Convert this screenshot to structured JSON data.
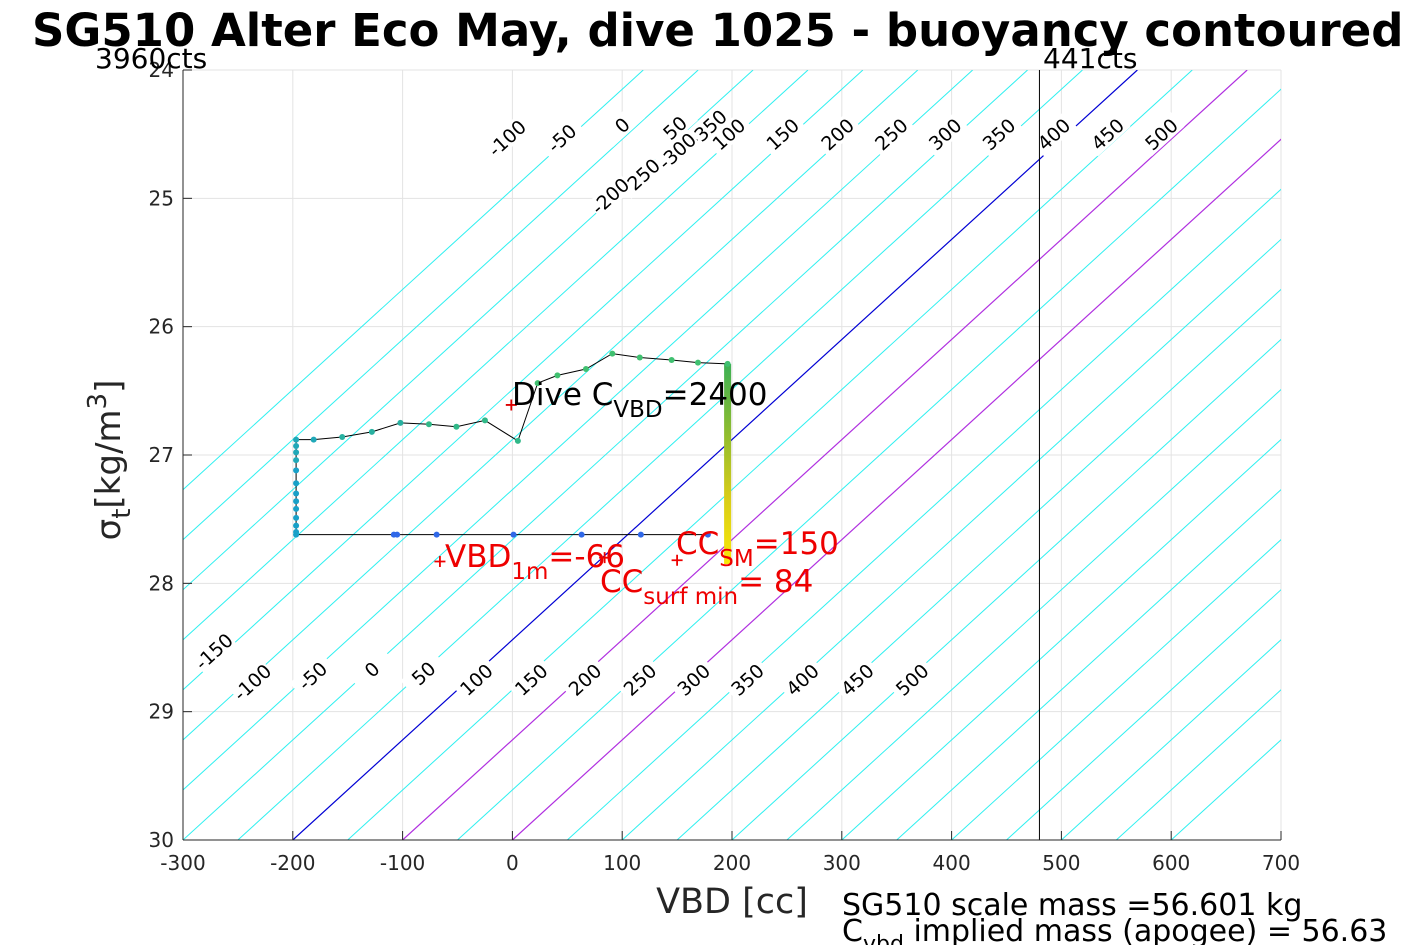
{
  "chart_data": {
    "type": "line",
    "title": "SG510 Alter Eco May, dive 1025 - buoyancy contoured",
    "xlabel": "VBD [cc]",
    "ylabel": "σ_t [kg/m^3]",
    "ylabel_parts": {
      "sigma": "σ",
      "sub": "t",
      "unit_pre": "[kg/m",
      "sup": "3",
      "unit_post": "]"
    },
    "xlim": [
      -300,
      700
    ],
    "ylim": [
      24,
      30
    ],
    "y_reversed": true,
    "grid": true,
    "xticks": [
      -300,
      -200,
      -100,
      0,
      100,
      200,
      300,
      400,
      500,
      600,
      700
    ],
    "yticks": [
      24,
      25,
      26,
      27,
      28,
      29,
      30
    ],
    "xtick_labels": [
      "-300",
      "-200",
      "-100",
      "0",
      "100",
      "200",
      "300",
      "400",
      "500",
      "600",
      "700"
    ],
    "ytick_labels": [
      "24",
      "25",
      "26",
      "27",
      "28",
      "29",
      "30"
    ],
    "vbd_counts": {
      "left": "3960cts",
      "right": "441cts",
      "right_vbd_line": 480
    },
    "buoyancy_contours": {
      "levels": [
        -350,
        -300,
        -250,
        -200,
        -150,
        -100,
        -50,
        0,
        50,
        100,
        150,
        200,
        250,
        300,
        350,
        400,
        450,
        500
      ],
      "slope_cc_per_kgm3": -128.2,
      "reference_sigma": 30,
      "vbd_at_reference_for_zero": -200,
      "zero_level_color": "#0000d4",
      "highlight_levels": [
        100,
        200
      ],
      "highlight_color": "#b030e0",
      "contour_color": "#2ef0f0",
      "top_labels": [
        {
          "level": -350,
          "label": "-350",
          "x": 178,
          "y": 24.45
        },
        {
          "level": -300,
          "label": "-300",
          "x": 150,
          "y": 24.63
        },
        {
          "level": -250,
          "label": "-250",
          "x": 117,
          "y": 24.83
        },
        {
          "level": -200,
          "label": "-200",
          "x": 89,
          "y": 24.98
        },
        {
          "level": -100,
          "label": "-100",
          "x": -5,
          "y": 24.53
        },
        {
          "level": -50,
          "label": "-50",
          "x": 45,
          "y": 24.53
        },
        {
          "level": 0,
          "label": "0",
          "x": 100,
          "y": 24.43
        },
        {
          "level": 50,
          "label": "50",
          "x": 148,
          "y": 24.45
        },
        {
          "level": 100,
          "label": "100",
          "x": 197,
          "y": 24.5
        },
        {
          "level": 150,
          "label": "150",
          "x": 246,
          "y": 24.5
        },
        {
          "level": 200,
          "label": "200",
          "x": 296,
          "y": 24.5
        },
        {
          "level": 250,
          "label": "250",
          "x": 345,
          "y": 24.5
        },
        {
          "level": 300,
          "label": "300",
          "x": 394,
          "y": 24.5
        },
        {
          "level": 350,
          "label": "350",
          "x": 443,
          "y": 24.5
        },
        {
          "level": 400,
          "label": "400",
          "x": 493,
          "y": 24.5
        },
        {
          "level": 450,
          "label": "450",
          "x": 542,
          "y": 24.5
        },
        {
          "level": 500,
          "label": "500",
          "x": 591,
          "y": 24.5
        }
      ],
      "bottom_labels": [
        {
          "level": -150,
          "label": "-150",
          "x": -272,
          "y": 28.53
        },
        {
          "level": -100,
          "label": "-100",
          "x": -237,
          "y": 28.77
        },
        {
          "level": -50,
          "label": "-50",
          "x": -182,
          "y": 28.72
        },
        {
          "level": 0,
          "label": "0",
          "x": -128,
          "y": 28.67
        },
        {
          "level": 50,
          "label": "50",
          "x": -81,
          "y": 28.7
        },
        {
          "level": 100,
          "label": "100",
          "x": -33,
          "y": 28.75
        },
        {
          "level": 150,
          "label": "150",
          "x": 17,
          "y": 28.75
        },
        {
          "level": 200,
          "label": "200",
          "x": 66,
          "y": 28.75
        },
        {
          "level": 250,
          "label": "250",
          "x": 116,
          "y": 28.75
        },
        {
          "level": 300,
          "label": "300",
          "x": 165,
          "y": 28.75
        },
        {
          "level": 350,
          "label": "350",
          "x": 214,
          "y": 28.75
        },
        {
          "level": 400,
          "label": "400",
          "x": 264,
          "y": 28.75
        },
        {
          "level": 450,
          "label": "450",
          "x": 314,
          "y": 28.75
        },
        {
          "level": 500,
          "label": "500",
          "x": 364,
          "y": 28.75
        }
      ]
    },
    "series": [
      {
        "kind": "dive_track",
        "line_color": "#000000",
        "points": [
          {
            "x": 196,
            "y": 26.29,
            "c": "#40c070"
          },
          {
            "x": 169,
            "y": 26.28,
            "c": "#40c070"
          },
          {
            "x": 145,
            "y": 26.26,
            "c": "#40c070"
          },
          {
            "x": 116,
            "y": 26.24,
            "c": "#40c070"
          },
          {
            "x": 91,
            "y": 26.21,
            "c": "#40c070"
          },
          {
            "x": 67,
            "y": 26.33,
            "c": "#40c070"
          },
          {
            "x": 41,
            "y": 26.38,
            "c": "#40c070"
          },
          {
            "x": 23,
            "y": 26.44,
            "c": "#40c070"
          },
          {
            "x": 5,
            "y": 26.89,
            "c": "#30b888"
          },
          {
            "x": -25,
            "y": 26.73,
            "c": "#30b888"
          },
          {
            "x": -51,
            "y": 26.78,
            "c": "#30b888"
          },
          {
            "x": -76,
            "y": 26.76,
            "c": "#30b888"
          },
          {
            "x": -102,
            "y": 26.75,
            "c": "#28b0a0"
          },
          {
            "x": -128,
            "y": 26.82,
            "c": "#28b0a0"
          },
          {
            "x": -155,
            "y": 26.86,
            "c": "#28b0a0"
          },
          {
            "x": -181,
            "y": 26.88,
            "c": "#20a8b8"
          },
          {
            "x": -197,
            "y": 26.88,
            "c": "#20a8b8"
          },
          {
            "x": -197,
            "y": 26.93,
            "c": "#20a8b8"
          },
          {
            "x": -197,
            "y": 26.98,
            "c": "#20a8b8"
          },
          {
            "x": -197,
            "y": 27.04,
            "c": "#20a8b8"
          },
          {
            "x": -197,
            "y": 27.12,
            "c": "#18a0c8"
          },
          {
            "x": -197,
            "y": 27.22,
            "c": "#18a0c8"
          },
          {
            "x": -197,
            "y": 27.3,
            "c": "#18a0c8"
          },
          {
            "x": -197,
            "y": 27.36,
            "c": "#18a0c8"
          },
          {
            "x": -197,
            "y": 27.42,
            "c": "#18a0c8"
          },
          {
            "x": -197,
            "y": 27.49,
            "c": "#18a0c8"
          },
          {
            "x": -197,
            "y": 27.55,
            "c": "#18a0c8"
          },
          {
            "x": -197,
            "y": 27.6,
            "c": "#18a0c8"
          },
          {
            "x": -197,
            "y": 27.62,
            "c": "#18a0c8"
          },
          {
            "x": -108,
            "y": 27.62,
            "c": "#3068e8"
          },
          {
            "x": -105,
            "y": 27.62,
            "c": "#3068e8"
          },
          {
            "x": -69,
            "y": 27.62,
            "c": "#3068e8"
          },
          {
            "x": 1,
            "y": 27.62,
            "c": "#3068e8"
          },
          {
            "x": 63,
            "y": 27.62,
            "c": "#3068e8"
          },
          {
            "x": 117,
            "y": 27.62,
            "c": "#3068e8"
          },
          {
            "x": 178,
            "y": 27.62,
            "c": "#3068e8"
          }
        ]
      },
      {
        "kind": "vertical_gradient_bar",
        "x": 196,
        "y_top": 26.29,
        "y_bottom": 27.85,
        "colors": [
          "#3cb054",
          "#8cbc30",
          "#d8cc18",
          "#f8e808"
        ]
      }
    ],
    "markers": [
      {
        "label": "Dive C_VBD=2400",
        "x": -1,
        "y": 26.61,
        "color": "#dd0000"
      },
      {
        "label": "VBD_1m = -66",
        "x": -66,
        "y": 27.83,
        "color": "#ee0000"
      },
      {
        "label": "CC_surf min = 84",
        "x": 84,
        "y": 27.8,
        "color": "#ee0000"
      },
      {
        "label": "CC_SM = 150",
        "x": 150,
        "y": 27.82,
        "color": "#ee0000"
      }
    ],
    "annotations": {
      "dive_cvbd": {
        "pre": "Dive C",
        "sub": "VBD",
        "post": "=2400"
      },
      "vbd_1m": {
        "pre": "VBD",
        "sub": "1m",
        "post": "=-66"
      },
      "cc_sm": {
        "pre": "CC",
        "sub": "SM",
        "post": "=150"
      },
      "cc_surf": {
        "pre": "CC",
        "sub": "surf min",
        "post": "= 84"
      },
      "scale_mass": "SG510 scale mass =56.601 kg",
      "implied_mass": {
        "pre": "C",
        "sub": "vbd",
        "post": " implied mass (apogee) = 56.63"
      }
    },
    "colors": {
      "grid": "#e3e3e3",
      "axis": "#262626",
      "text_red": "#ee0000",
      "text": "#000000"
    }
  }
}
